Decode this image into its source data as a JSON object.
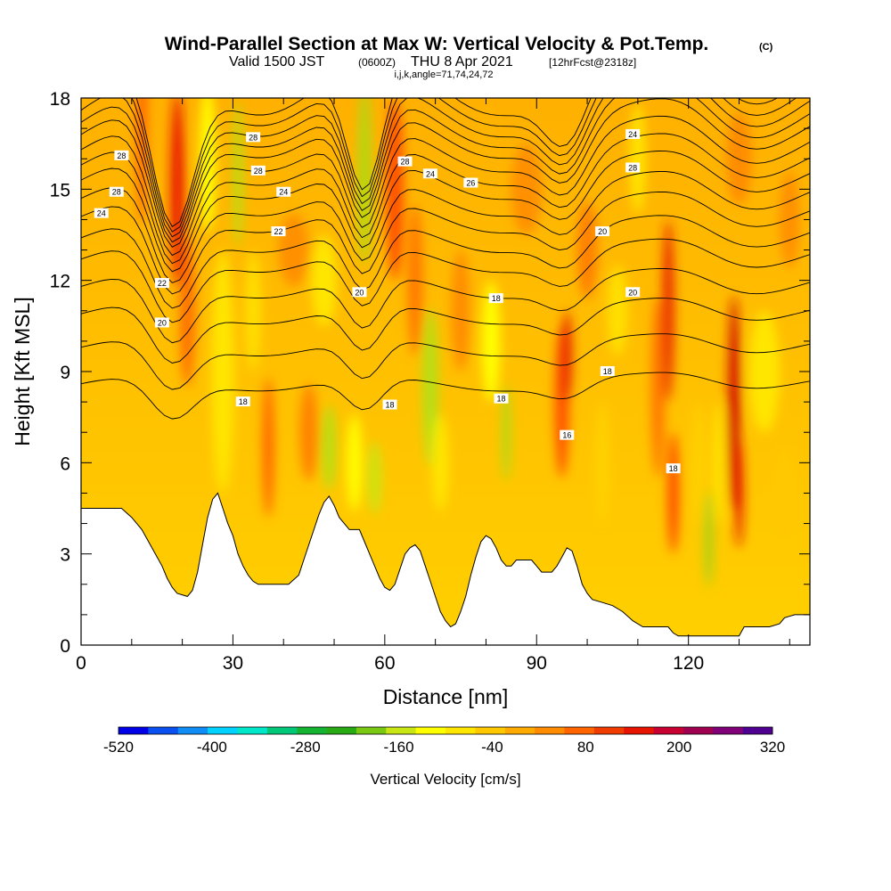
{
  "title": {
    "main": "Wind-Parallel Section at Max W: Vertical Velocity & Pot.Temp.",
    "corner": "(C)",
    "valid_prefix": "Valid 1500 JST",
    "valid_utc": "(0600Z)",
    "valid_date": "THU 8 Apr 2021",
    "forecast": "[12hrFcst@2318z]",
    "params": "i,j,k,angle=71,74,24,72"
  },
  "chart_data": {
    "type": "heatmap",
    "xlabel": "Distance [nm]",
    "ylabel": "Height [Kft MSL]",
    "xlim": [
      0,
      144
    ],
    "ylim": [
      0,
      18
    ],
    "x_ticks": [
      "0",
      "30",
      "60",
      "90",
      "120"
    ],
    "y_ticks": [
      "0",
      "3",
      "6",
      "9",
      "12",
      "15",
      "18"
    ],
    "grid": false,
    "colorbar": {
      "title": "Vertical Velocity [cm/s]",
      "tick_labels": [
        "-520",
        "-400",
        "-280",
        "-160",
        "-40",
        "80",
        "200",
        "320"
      ],
      "colors": [
        "#0000e6",
        "#0a50f0",
        "#0f8cf5",
        "#00d2ff",
        "#00e6c8",
        "#00c878",
        "#14b432",
        "#28aa14",
        "#78c814",
        "#c8e614",
        "#ffff00",
        "#ffe600",
        "#ffc800",
        "#ffaa00",
        "#ff8c00",
        "#ff6400",
        "#f03c00",
        "#e61400",
        "#c80032",
        "#a00050",
        "#800078",
        "#500090"
      ]
    },
    "terrain": [
      [
        0,
        4.5
      ],
      [
        8,
        4.5
      ],
      [
        10,
        4.2
      ],
      [
        12,
        3.8
      ],
      [
        14,
        3.2
      ],
      [
        16,
        2.6
      ],
      [
        17,
        2.2
      ],
      [
        18,
        1.9
      ],
      [
        19,
        1.7
      ],
      [
        21,
        1.6
      ],
      [
        22,
        1.8
      ],
      [
        23,
        2.4
      ],
      [
        24,
        3.3
      ],
      [
        25,
        4.2
      ],
      [
        26,
        4.8
      ],
      [
        27,
        5.0
      ],
      [
        28,
        4.5
      ],
      [
        29,
        4.0
      ],
      [
        30,
        3.6
      ],
      [
        31,
        3.0
      ],
      [
        32,
        2.6
      ],
      [
        33,
        2.3
      ],
      [
        34,
        2.1
      ],
      [
        35,
        2.0
      ],
      [
        38,
        2.0
      ],
      [
        41,
        2.0
      ],
      [
        43,
        2.3
      ],
      [
        44,
        2.8
      ],
      [
        45,
        3.3
      ],
      [
        46,
        3.8
      ],
      [
        47,
        4.3
      ],
      [
        48,
        4.7
      ],
      [
        49,
        4.9
      ],
      [
        50,
        4.6
      ],
      [
        51,
        4.2
      ],
      [
        52,
        4.0
      ],
      [
        53,
        3.8
      ],
      [
        55,
        3.8
      ],
      [
        56,
        3.4
      ],
      [
        57,
        3.0
      ],
      [
        58,
        2.6
      ],
      [
        59,
        2.2
      ],
      [
        60,
        1.9
      ],
      [
        61,
        1.8
      ],
      [
        62,
        2.0
      ],
      [
        63,
        2.5
      ],
      [
        64,
        3.0
      ],
      [
        65,
        3.2
      ],
      [
        66,
        3.3
      ],
      [
        67,
        3.1
      ],
      [
        68,
        2.6
      ],
      [
        69,
        2.1
      ],
      [
        70,
        1.6
      ],
      [
        71,
        1.1
      ],
      [
        72,
        0.8
      ],
      [
        73,
        0.6
      ],
      [
        74,
        0.7
      ],
      [
        75,
        1.1
      ],
      [
        76,
        1.6
      ],
      [
        77,
        2.3
      ],
      [
        78,
        2.9
      ],
      [
        79,
        3.4
      ],
      [
        80,
        3.6
      ],
      [
        81,
        3.5
      ],
      [
        82,
        3.2
      ],
      [
        83,
        2.8
      ],
      [
        84,
        2.6
      ],
      [
        85,
        2.6
      ],
      [
        86,
        2.8
      ],
      [
        89,
        2.8
      ],
      [
        90,
        2.6
      ],
      [
        91,
        2.4
      ],
      [
        93,
        2.4
      ],
      [
        94,
        2.6
      ],
      [
        95,
        2.9
      ],
      [
        96,
        3.2
      ],
      [
        97,
        3.1
      ],
      [
        98,
        2.6
      ],
      [
        99,
        2.0
      ],
      [
        100,
        1.7
      ],
      [
        101,
        1.5
      ],
      [
        103,
        1.4
      ],
      [
        105,
        1.3
      ],
      [
        107,
        1.1
      ],
      [
        109,
        0.8
      ],
      [
        111,
        0.6
      ],
      [
        116,
        0.6
      ],
      [
        117,
        0.4
      ],
      [
        118,
        0.3
      ],
      [
        130,
        0.3
      ],
      [
        131,
        0.6
      ],
      [
        136,
        0.6
      ],
      [
        138,
        0.7
      ],
      [
        139,
        0.9
      ],
      [
        141,
        1.0
      ],
      [
        144,
        1.0
      ]
    ],
    "contour_labels": [
      "28",
      "28",
      "24",
      "28",
      "28",
      "24",
      "22",
      "22",
      "20",
      "28",
      "24",
      "20",
      "18",
      "18",
      "26",
      "24",
      "28",
      "20",
      "18",
      "18",
      "20",
      "18",
      "16",
      "18"
    ]
  }
}
